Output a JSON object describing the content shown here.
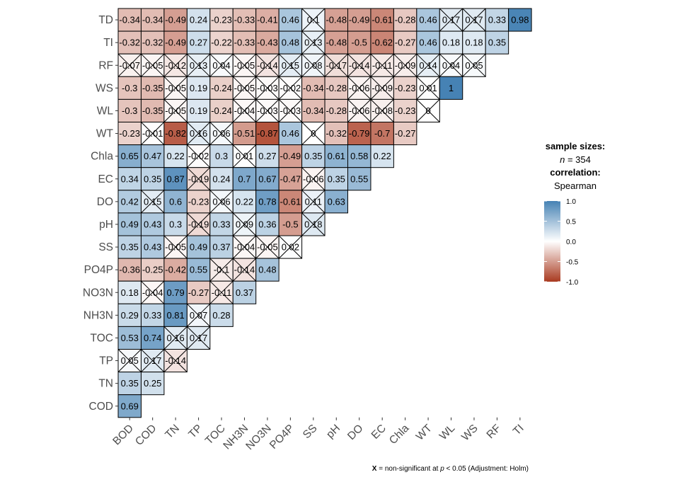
{
  "chart_data": {
    "type": "heatmap",
    "title": "",
    "xlabel": "",
    "ylabel": "",
    "x_categories": [
      "BOD",
      "COD",
      "TN",
      "TP",
      "TOC",
      "NH3N",
      "NO3N",
      "PO4P",
      "SS",
      "pH",
      "DO",
      "EC",
      "Chla",
      "WT",
      "WL",
      "WS",
      "RF",
      "TI"
    ],
    "rows": [
      {
        "label": "TD",
        "values": [
          "-0.34",
          "-0.34",
          "-0.49",
          "0.24",
          "-0.23",
          "-0.33",
          "-0.41",
          "0.46",
          "0.1",
          "-0.48",
          "-0.49",
          "-0.61",
          "-0.28",
          "0.46",
          "0.17",
          "0.17",
          "0.33",
          "0.98"
        ],
        "nonsig": [
          8,
          14,
          15
        ]
      },
      {
        "label": "TI",
        "values": [
          "-0.32",
          "-0.32",
          "-0.49",
          "0.27",
          "-0.22",
          "-0.33",
          "-0.43",
          "0.48",
          "0.13",
          "-0.48",
          "-0.5",
          "-0.62",
          "-0.27",
          "0.46",
          "0.18",
          "0.18",
          "0.35"
        ],
        "nonsig": [
          8
        ]
      },
      {
        "label": "RF",
        "values": [
          "-0.07",
          "-0.05",
          "-0.12",
          "0.13",
          "0.04",
          "-0.05",
          "-0.14",
          "0.15",
          "0.08",
          "-0.17",
          "-0.14",
          "-0.11",
          "-0.09",
          "0.14",
          "0.04",
          "0.05"
        ],
        "nonsig": [
          0,
          1,
          2,
          3,
          4,
          5,
          6,
          7,
          8,
          9,
          10,
          11,
          12,
          13,
          14,
          15
        ]
      },
      {
        "label": "WS",
        "values": [
          "-0.3",
          "-0.35",
          "-0.05",
          "0.19",
          "-0.24",
          "-0.05",
          "-0.03",
          "-0.02",
          "-0.34",
          "-0.28",
          "-0.06",
          "-0.09",
          "-0.23",
          "0.01",
          "1"
        ],
        "nonsig": [
          2,
          5,
          6,
          7,
          10,
          11,
          13
        ]
      },
      {
        "label": "WL",
        "values": [
          "-0.3",
          "-0.35",
          "-0.05",
          "0.19",
          "-0.24",
          "-0.04",
          "-0.03",
          "-0.03",
          "-0.34",
          "-0.28",
          "-0.06",
          "-0.08",
          "-0.23",
          "0"
        ],
        "nonsig": [
          2,
          5,
          6,
          7,
          10,
          11,
          13
        ]
      },
      {
        "label": "WT",
        "values": [
          "-0.23",
          "-0.01",
          "-0.82",
          "0.16",
          "0.06",
          "-0.51",
          "-0.87",
          "0.46",
          "0",
          "-0.32",
          "-0.79",
          "-0.7",
          "-0.27"
        ],
        "nonsig": [
          1,
          3,
          4,
          8
        ]
      },
      {
        "label": "Chla",
        "values": [
          "0.65",
          "0.47",
          "0.22",
          "-0.02",
          "0.3",
          "0.01",
          "0.27",
          "-0.49",
          "0.35",
          "0.61",
          "0.58",
          "0.22"
        ],
        "nonsig": [
          3,
          5
        ]
      },
      {
        "label": "EC",
        "values": [
          "0.34",
          "0.35",
          "0.87",
          "-0.19",
          "0.24",
          "0.7",
          "0.67",
          "-0.47",
          "-0.06",
          "0.35",
          "0.55"
        ],
        "nonsig": [
          3,
          8
        ]
      },
      {
        "label": "DO",
        "values": [
          "0.42",
          "0.15",
          "0.6",
          "-0.23",
          "0.06",
          "0.22",
          "0.78",
          "-0.61",
          "0.11",
          "0.63"
        ],
        "nonsig": [
          1,
          4,
          8
        ]
      },
      {
        "label": "pH",
        "values": [
          "0.49",
          "0.43",
          "0.3",
          "-0.19",
          "0.33",
          "0.09",
          "0.36",
          "-0.5",
          "0.18"
        ],
        "nonsig": [
          3,
          5,
          8
        ]
      },
      {
        "label": "SS",
        "values": [
          "0.35",
          "0.43",
          "-0.05",
          "0.49",
          "0.37",
          "-0.04",
          "-0.05",
          "0.02"
        ],
        "nonsig": [
          2,
          5,
          6,
          7
        ]
      },
      {
        "label": "PO4P",
        "values": [
          "-0.36",
          "-0.25",
          "-0.42",
          "0.55",
          "-0.1",
          "-0.14",
          "0.48"
        ],
        "nonsig": [
          4,
          5
        ]
      },
      {
        "label": "NO3N",
        "values": [
          "0.18",
          "-0.04",
          "0.79",
          "-0.27",
          "-0.11",
          "0.37"
        ],
        "nonsig": [
          1,
          4
        ]
      },
      {
        "label": "NH3N",
        "values": [
          "0.29",
          "0.33",
          "0.81",
          "0.07",
          "0.28"
        ],
        "nonsig": [
          3
        ]
      },
      {
        "label": "TOC",
        "values": [
          "0.53",
          "0.74",
          "0.16",
          "0.17"
        ],
        "nonsig": [
          2,
          3
        ]
      },
      {
        "label": "TP",
        "values": [
          "0.05",
          "0.17",
          "-0.14"
        ],
        "nonsig": [
          0,
          1,
          2
        ]
      },
      {
        "label": "TN",
        "values": [
          "0.35",
          "0.25"
        ],
        "nonsig": []
      },
      {
        "label": "COD",
        "values": [
          "0.69"
        ],
        "nonsig": []
      }
    ],
    "color_scale": {
      "min": -1.0,
      "max": 1.0,
      "low": "#A63603",
      "mid": "#FFFFFF",
      "high": "#4682B4"
    },
    "legend": {
      "sample_sizes_title": "sample sizes:",
      "n_symbol": "n",
      "n_text": " = 354",
      "correlation_title": "correlation:",
      "method": "Spearman",
      "ticks": [
        "1.0",
        "0.5",
        "0.0",
        "-0.5",
        "-1.0"
      ],
      "placement": "right"
    },
    "caption": {
      "x_mark": "X",
      "pre_p": " = non-significant at ",
      "p": "p",
      "post_p": " < 0.05 (Adjustment: Holm)"
    }
  },
  "colors": {
    "negative": "#A93A20",
    "neutral": "#FFFFFF",
    "positive": "#4682B4",
    "axis_text": "#4D4D4D",
    "grid_line": "#000000"
  }
}
